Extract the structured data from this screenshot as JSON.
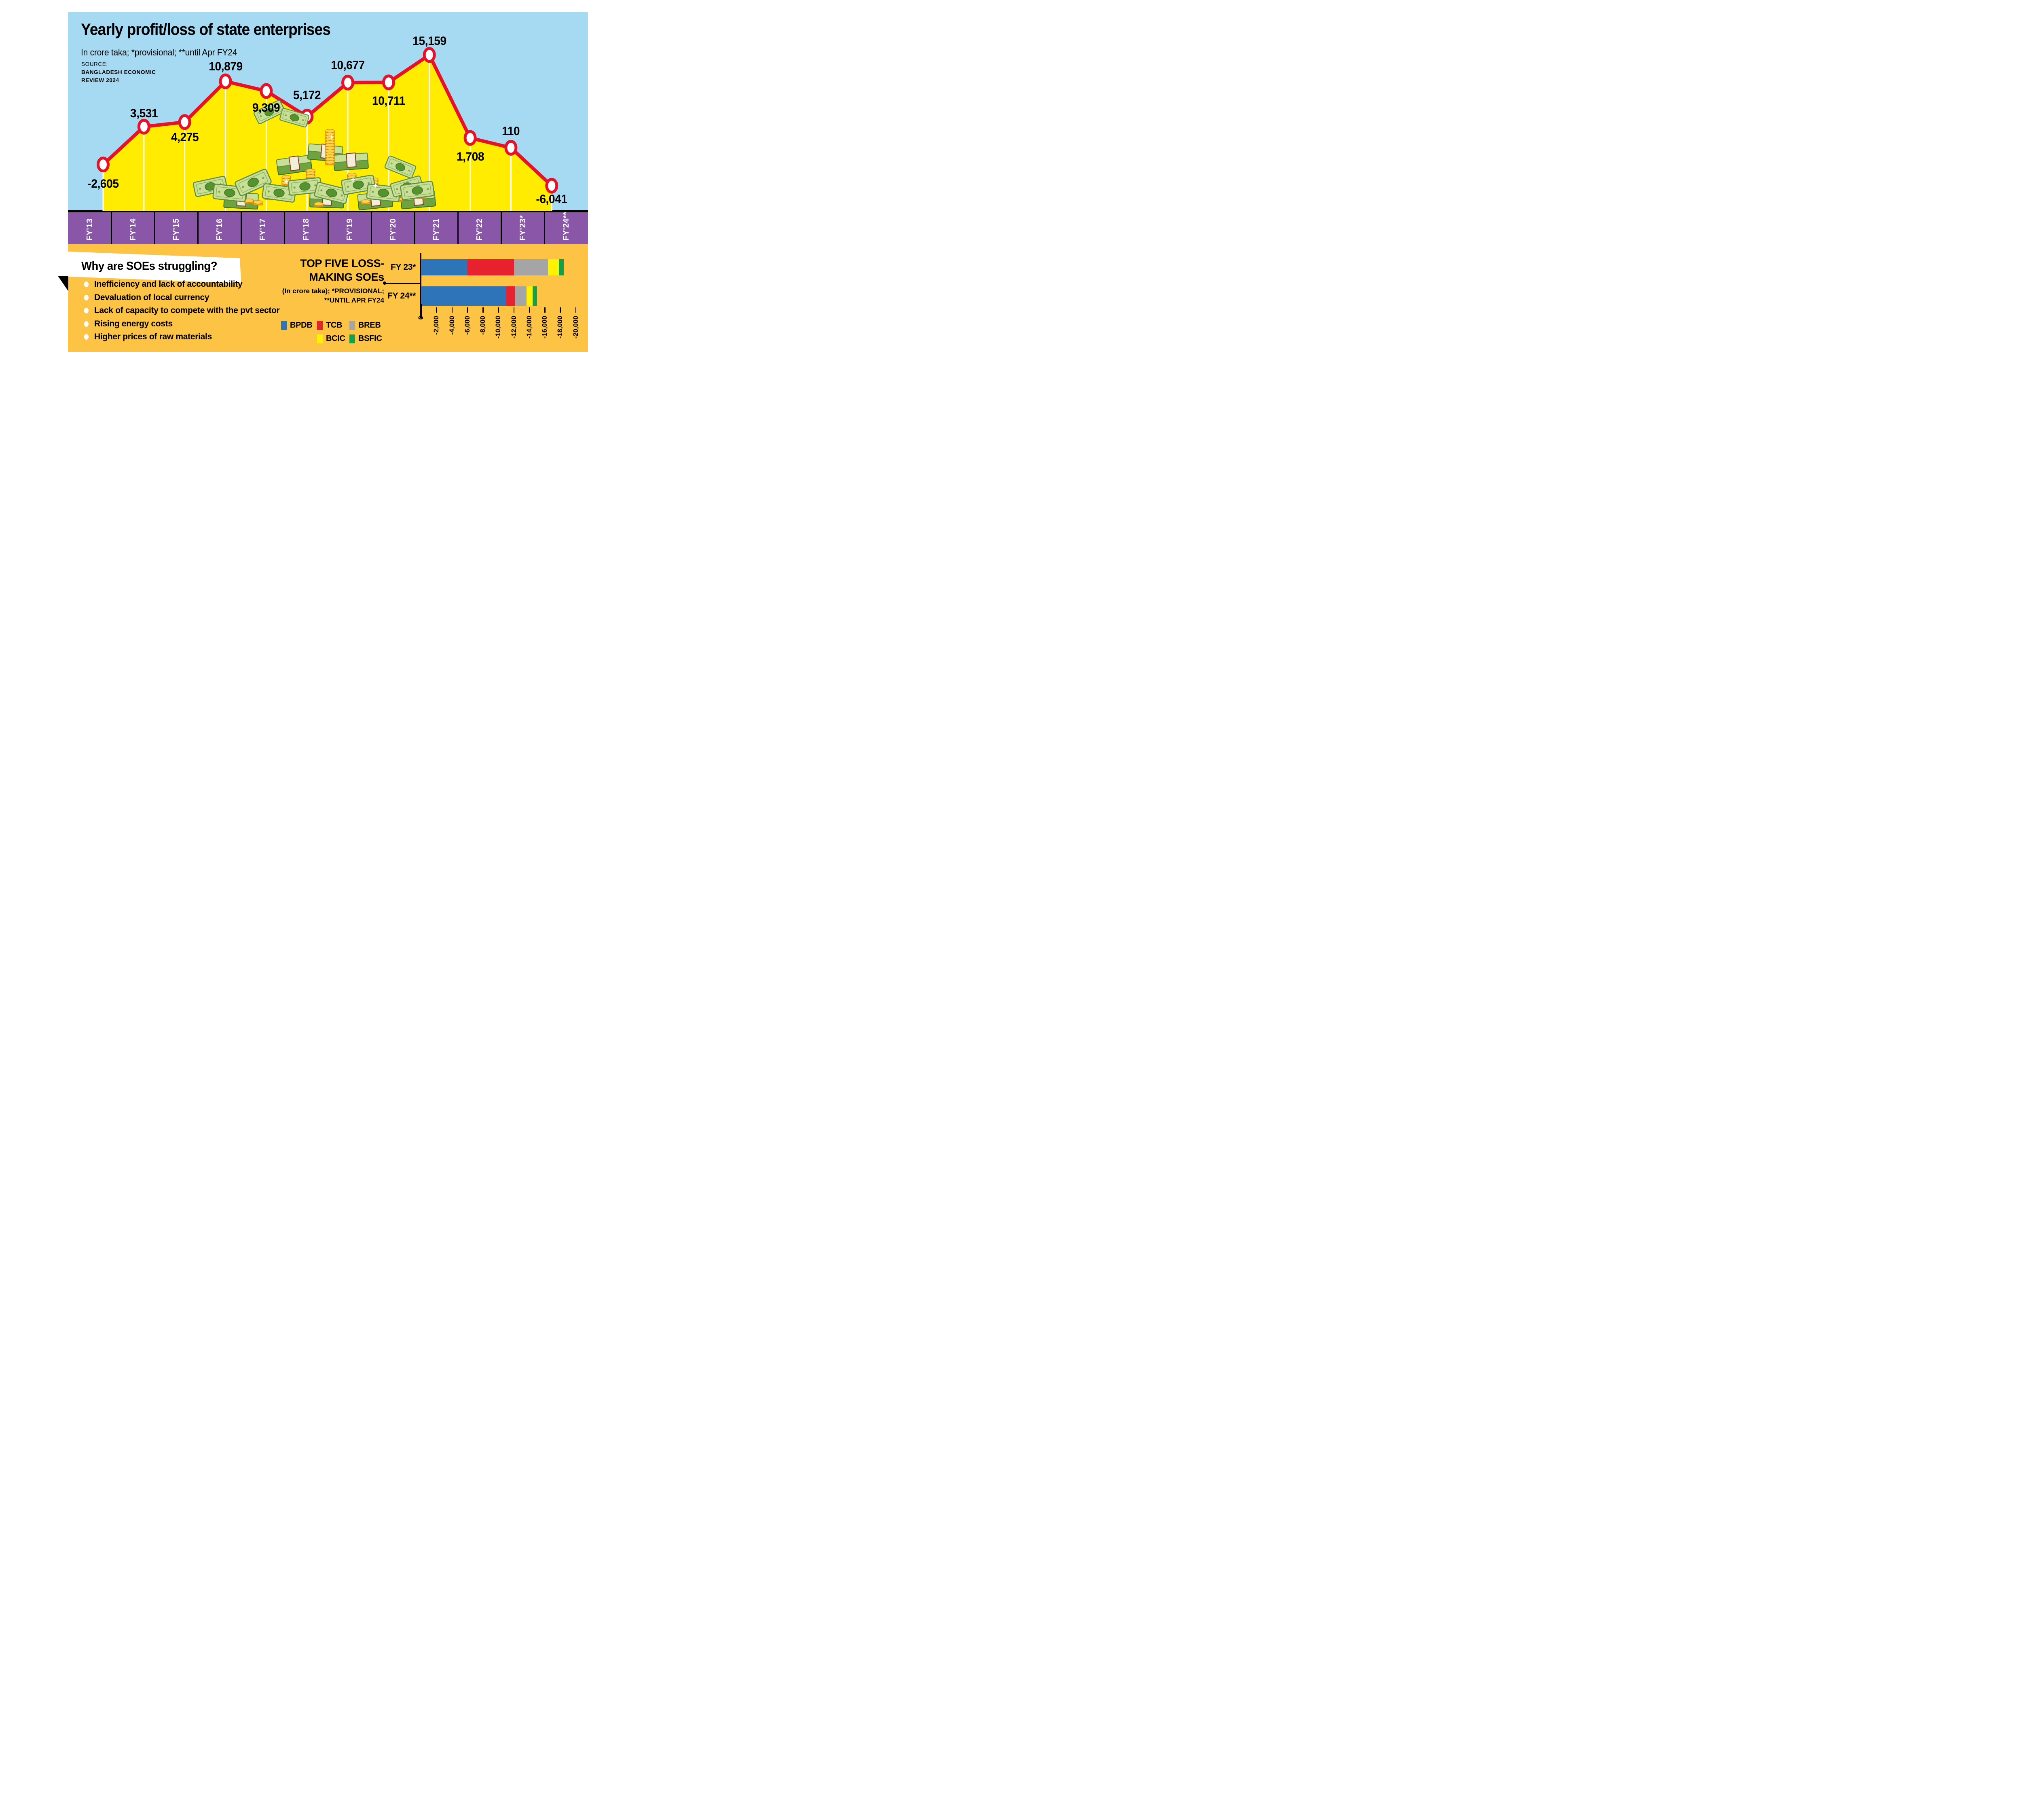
{
  "palette": {
    "sky": "#A6DAF2",
    "area_yellow": "#FFEC00",
    "line_red": "#E8112A",
    "band_purple": "#8A56A8",
    "panel_orange": "#FCC344",
    "text_black": "#000000",
    "ribbon_white": "#FFFFFF"
  },
  "header": {
    "title": "Yearly profit/loss of state enterprises",
    "subtitle": "In crore taka; *provisional; **until Apr FY24",
    "source_label": "SOURCE:",
    "source_line1": "BANGLADESH ECONOMIC",
    "source_line2": "REVIEW 2024"
  },
  "chart_data": [
    {
      "type": "area",
      "title": "Yearly profit/loss of state enterprises",
      "unit": "crore taka",
      "categories": [
        "FY'13",
        "FY'14",
        "FY'15",
        "FY'16",
        "FY'17",
        "FY'18",
        "FY'19",
        "FY'20",
        "FY'21",
        "FY'22",
        "FY'23*",
        "FY'24**"
      ],
      "values": [
        -2605,
        3531,
        4275,
        10879,
        9309,
        5172,
        10677,
        10711,
        15159,
        1708,
        110,
        -6041
      ],
      "labels": [
        "-2,605",
        "3,531",
        "4,275",
        "10,879",
        "9,309",
        "5,172",
        "10,677",
        "10,711",
        "15,159",
        "1,708",
        "110",
        "-6,041"
      ],
      "ylim": [
        -6500,
        15500
      ],
      "grid": false,
      "legend": false,
      "marker": "white circle with red ring",
      "line_color": "#E8112A",
      "fill_color": "#FFEC00"
    },
    {
      "type": "bar",
      "orientation": "horizontal",
      "stacked": true,
      "title": "TOP FIVE LOSS-MAKING SOEs",
      "note": "(In crore taka); *PROVISIONAL; **UNTIL APR FY24",
      "categories": [
        "FY 23*",
        "FY 24**"
      ],
      "series": [
        {
          "name": "BPDB",
          "color": "#2E74B9",
          "values": [
            -6000,
            -11000
          ]
        },
        {
          "name": "TCB",
          "color": "#E8212E",
          "values": [
            -6000,
            -1170
          ]
        },
        {
          "name": "BREB",
          "color": "#A5A5A5",
          "values": [
            -4400,
            -1460
          ]
        },
        {
          "name": "BCIC",
          "color": "#FFF200",
          "values": [
            -1450,
            -820
          ]
        },
        {
          "name": "BSFIC",
          "color": "#12A04B",
          "values": [
            -620,
            -570
          ]
        }
      ],
      "xlim": [
        0,
        -20000
      ],
      "tick_labels": [
        "0",
        "-2,000",
        "-4,000",
        "-6,000",
        "-8,000",
        "-10,000",
        "-12,000",
        "-14,000",
        "-16,000",
        "-18,000",
        "-20,000"
      ],
      "legend_position": "left of bars, two rows"
    }
  ],
  "struggles": {
    "heading": "Why are SOEs struggling?",
    "bullets": [
      "Inefficiency and lack of accountability",
      "Devaluation of local currency",
      "Lack of capacity to compete with the pvt sector",
      "Rising energy costs",
      "Higher prices of raw materials"
    ]
  },
  "top_five": {
    "title_lines": [
      "TOP FIVE LOSS-",
      "MAKING SOEs"
    ],
    "note_lines": [
      "(In crore taka); *PROVISIONAL;",
      "**UNTIL APR FY24"
    ],
    "row_labels": [
      "FY 23*",
      "FY 24**"
    ]
  }
}
